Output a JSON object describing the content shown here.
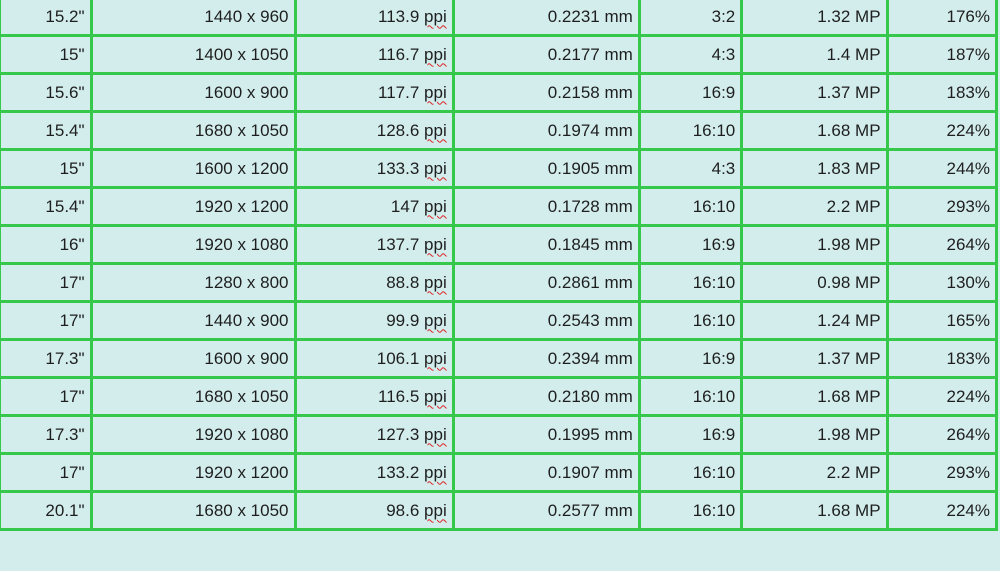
{
  "colors": {
    "background": "#d3eded",
    "grid": "#35c84a",
    "spellcheck_underline": "#dd2222"
  },
  "rows": [
    [
      "15.2\"",
      "1440 x 960",
      "113.9",
      "ppi",
      "0.2231 mm",
      "3:2",
      "1.32 MP",
      "176%"
    ],
    [
      "15\"",
      "1400 x 1050",
      "116.7",
      "ppi",
      "0.2177 mm",
      "4:3",
      "1.4 MP",
      "187%"
    ],
    [
      "15.6\"",
      "1600 x 900",
      "117.7",
      "ppi",
      "0.2158 mm",
      "16:9",
      "1.37 MP",
      "183%"
    ],
    [
      "15.4\"",
      "1680 x 1050",
      "128.6",
      "ppi",
      "0.1974 mm",
      "16:10",
      "1.68 MP",
      "224%"
    ],
    [
      "15\"",
      "1600 x 1200",
      "133.3",
      "ppi",
      "0.1905 mm",
      "4:3",
      "1.83 MP",
      "244%"
    ],
    [
      "15.4\"",
      "1920 x 1200",
      "147",
      "ppi",
      "0.1728 mm",
      "16:10",
      "2.2 MP",
      "293%"
    ],
    [
      "16\"",
      "1920 x 1080",
      "137.7",
      "ppi",
      "0.1845 mm",
      "16:9",
      "1.98 MP",
      "264%"
    ],
    [
      "17\"",
      "1280 x 800",
      "88.8",
      "ppi",
      "0.2861 mm",
      "16:10",
      "0.98 MP",
      "130%"
    ],
    [
      "17\"",
      "1440 x 900",
      "99.9",
      "ppi",
      "0.2543 mm",
      "16:10",
      "1.24 MP",
      "165%"
    ],
    [
      "17.3\"",
      "1600 x 900",
      "106.1",
      "ppi",
      "0.2394 mm",
      "16:9",
      "1.37 MP",
      "183%"
    ],
    [
      "17\"",
      "1680 x 1050",
      "116.5",
      "ppi",
      "0.2180 mm",
      "16:10",
      "1.68 MP",
      "224%"
    ],
    [
      "17.3\"",
      "1920 x 1080",
      "127.3",
      "ppi",
      "0.1995 mm",
      "16:9",
      "1.98 MP",
      "264%"
    ],
    [
      "17\"",
      "1920 x 1200",
      "133.2",
      "ppi",
      "0.1907 mm",
      "16:10",
      "2.2 MP",
      "293%"
    ],
    [
      "20.1\"",
      "1680 x 1050",
      "98.6",
      "ppi",
      "0.2577 mm",
      "16:10",
      "1.68 MP",
      "224%"
    ]
  ]
}
